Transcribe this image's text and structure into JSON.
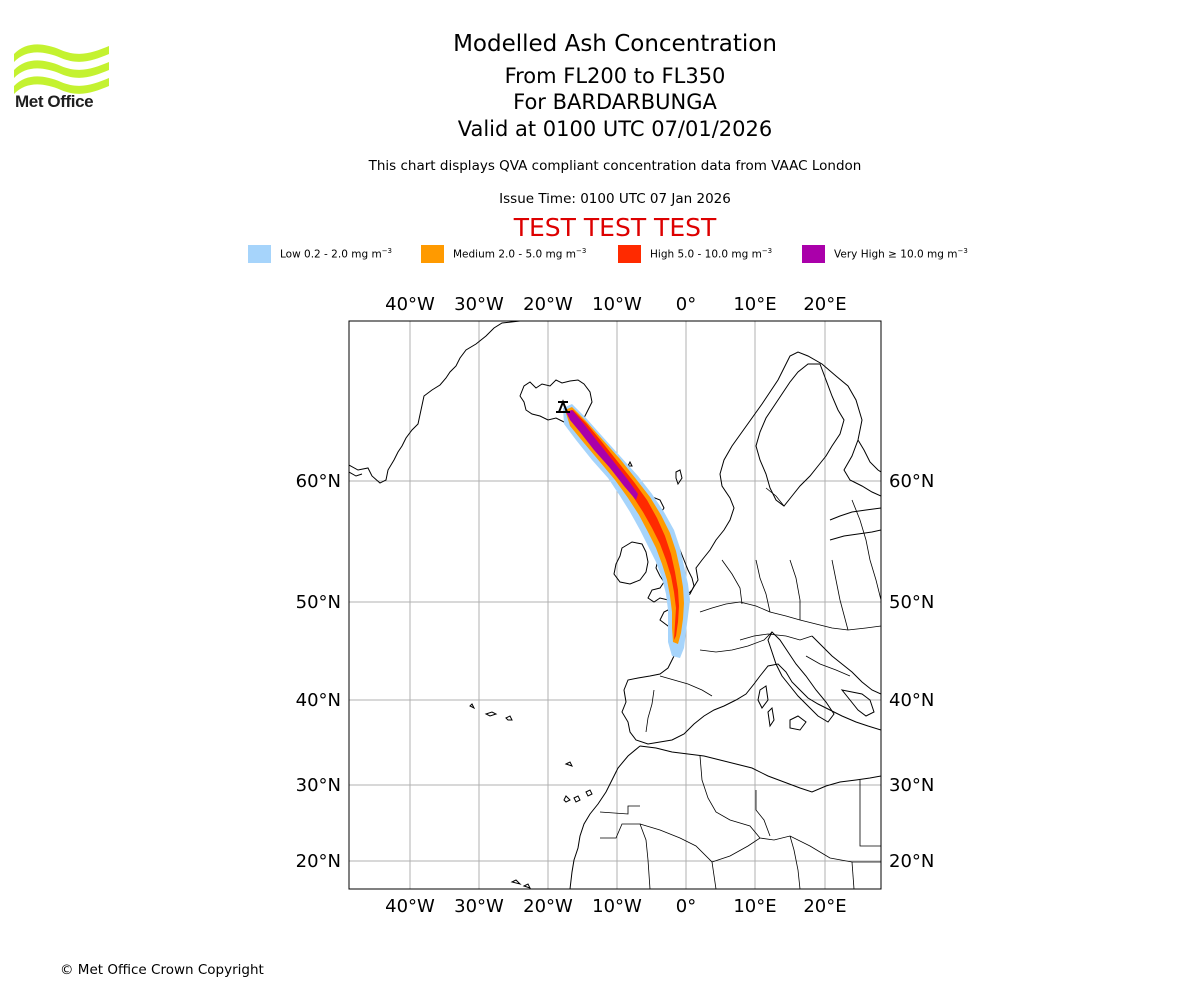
{
  "logo": {
    "name": "Met Office"
  },
  "titles": {
    "main": "Modelled Ash Concentration",
    "levels": "From FL200 to FL350",
    "volcano": "For BARDARBUNGA",
    "valid": "Valid at 0100 UTC 07/01/2026",
    "description": "This chart displays QVA compliant concentration data from VAAC London",
    "issue": "Issue Time: 0100 UTC 07 Jan 2026",
    "test_banner": "TEST TEST TEST"
  },
  "legend": [
    {
      "label": "Low 0.2 - 2.0 mg m",
      "exp": "−3",
      "color": "#a6d4fb"
    },
    {
      "label": "Medium 2.0 - 5.0 mg m",
      "exp": "−3",
      "color": "#ff9a00"
    },
    {
      "label": "High 5.0 - 10.0 mg m",
      "exp": "−3",
      "color": "#ff2a00"
    },
    {
      "label": "Very High  ≥  10.0 mg m",
      "exp": "−3",
      "color": "#aa00aa"
    }
  ],
  "map": {
    "lon_ticks": [
      "40°W",
      "30°W",
      "20°W",
      "10°W",
      "0°",
      "10°E",
      "20°E"
    ],
    "lat_ticks": [
      "60°N",
      "50°N",
      "40°N",
      "30°N",
      "20°N"
    ],
    "lon_values": [
      -40,
      -30,
      -20,
      -10,
      0,
      10,
      20
    ],
    "lat_values": [
      60,
      50,
      40,
      30,
      20
    ],
    "volcano_marker": "triangle-icon"
  },
  "footer": {
    "copyright": "© Met Office Crown Copyright"
  }
}
